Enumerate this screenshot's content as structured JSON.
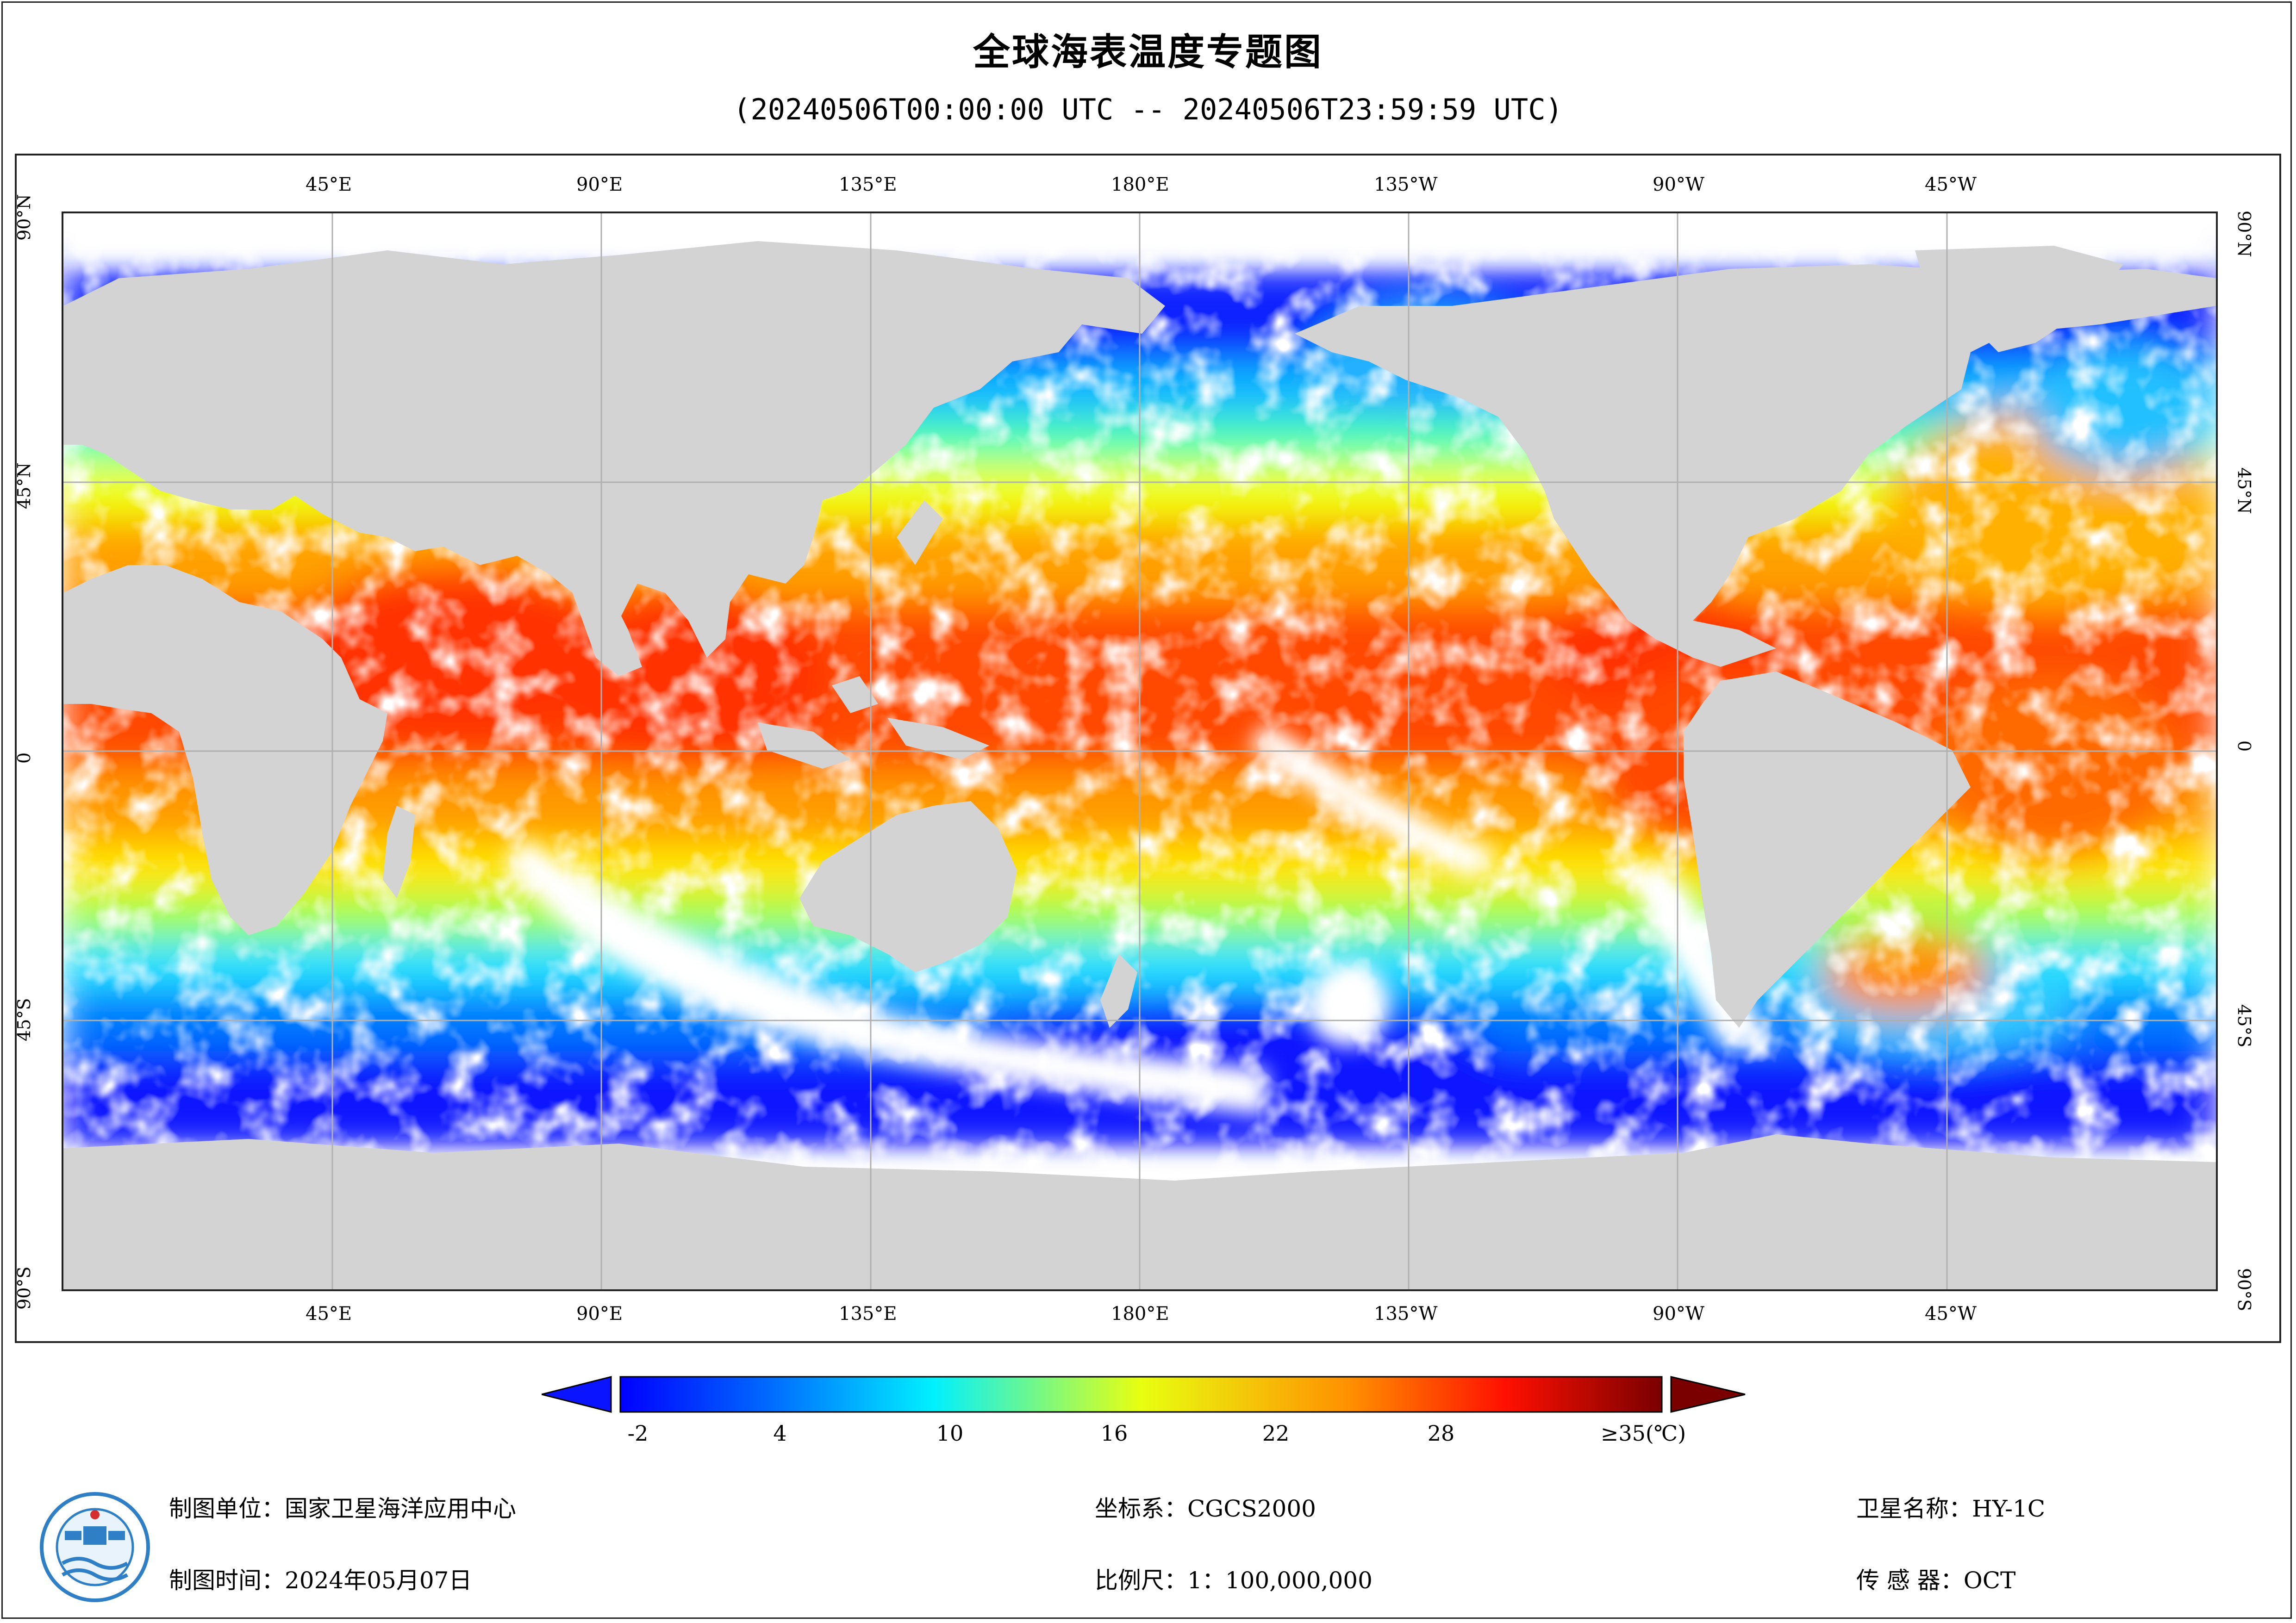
{
  "title": "全球海表温度专题图",
  "subtitle": "(20240506T00:00:00 UTC -- 20240506T23:59:59 UTC)",
  "grid": {
    "lon_labels": [
      "45°E",
      "90°E",
      "135°E",
      "180°E",
      "135°W",
      "90°W",
      "45°W"
    ],
    "lat_labels": [
      "90°N",
      "45°N",
      "0",
      "45°S",
      "90°S"
    ]
  },
  "legend": {
    "ticks": [
      "-2",
      "4",
      "10",
      "16",
      "22",
      "28"
    ],
    "max_label": "≥35(℃)",
    "colors": [
      "#0000ff",
      "#0078ff",
      "#00ffff",
      "#ffff00",
      "#ff5000",
      "#7a0000"
    ]
  },
  "footer": {
    "unit_label": "制图单位：国家卫星海洋应用中心",
    "time_label": "制图时间：2024年05月07日",
    "crs_label": "坐标系：CGCS2000",
    "scale_label": "比例尺：1：100,000,000",
    "satellite_label": "卫星名称：HY-1C",
    "sensor_label": "传 感 器：OCT"
  },
  "colors": {
    "land": "#d3d3d3",
    "cloud": "#ffffff",
    "grid": "#b0b0b0",
    "frame": "#222222"
  }
}
